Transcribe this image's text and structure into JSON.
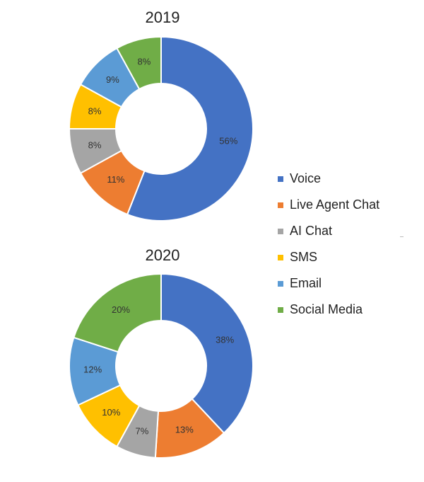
{
  "chart_data": [
    {
      "type": "pie",
      "title": "2019",
      "categories": [
        "Voice",
        "Live Agent Chat",
        "AI Chat",
        "SMS",
        "Email",
        "Social Media"
      ],
      "values": [
        56,
        11,
        8,
        8,
        9,
        8
      ],
      "labels": [
        "56%",
        "11%",
        "8%",
        "8%",
        "9%",
        "8%"
      ],
      "donut": true
    },
    {
      "type": "pie",
      "title": "2020",
      "categories": [
        "Voice",
        "Live Agent Chat",
        "AI Chat",
        "SMS",
        "Email",
        "Social Media"
      ],
      "values": [
        38,
        13,
        7,
        10,
        12,
        20
      ],
      "labels": [
        "38%",
        "13%",
        "7%",
        "10%",
        "12%",
        "20%"
      ],
      "donut": true
    }
  ],
  "legend": {
    "placement": "right",
    "items": [
      {
        "label": "Voice",
        "color": "#4472C4"
      },
      {
        "label": "Live Agent Chat",
        "color": "#ED7D31"
      },
      {
        "label": "AI Chat",
        "color": "#A5A5A5"
      },
      {
        "label": "SMS",
        "color": "#FFC000"
      },
      {
        "label": "Email",
        "color": "#5B9BD5"
      },
      {
        "label": "Social Media",
        "color": "#70AD47"
      }
    ]
  }
}
